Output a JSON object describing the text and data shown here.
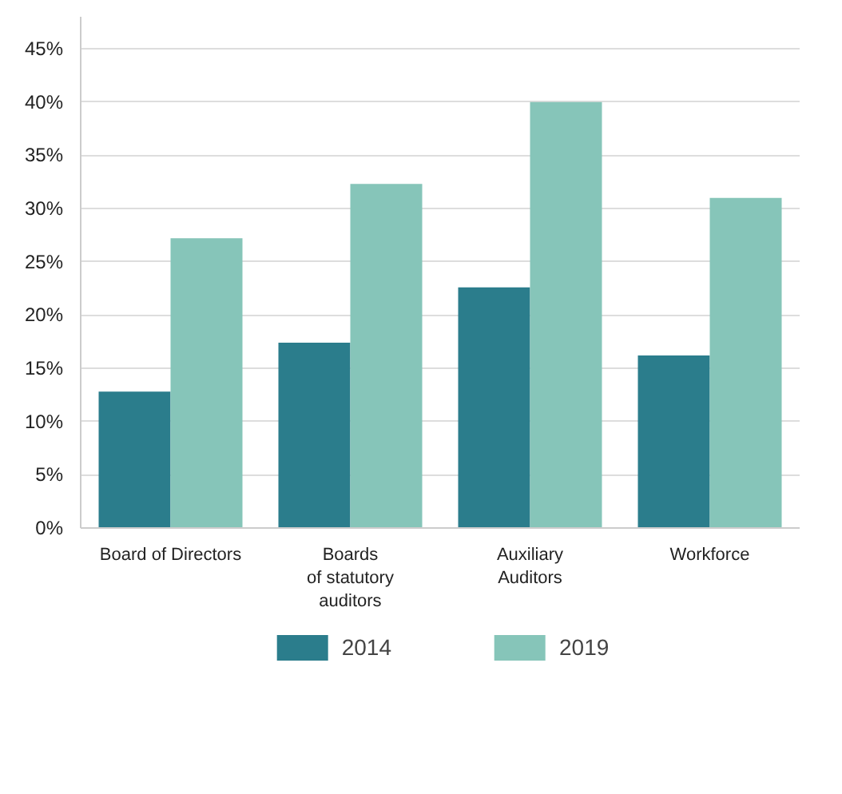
{
  "chart_data": {
    "type": "bar",
    "categories": [
      "Board of Directors",
      "Boards\nof statutory\nauditors",
      "Auxiliary\nAuditors",
      "Workforce"
    ],
    "series": [
      {
        "name": "2014",
        "color": "#2b7d8c",
        "values": [
          12.8,
          17.4,
          22.6,
          16.2
        ]
      },
      {
        "name": "2019",
        "color": "#86c5b9",
        "values": [
          27.2,
          32.3,
          40,
          31
        ]
      }
    ],
    "ylim": [
      0,
      48
    ],
    "yticks": [
      {
        "value": 0,
        "label": "0%"
      },
      {
        "value": 5,
        "label": "5%"
      },
      {
        "value": 10,
        "label": "10%"
      },
      {
        "value": 15,
        "label": "15%"
      },
      {
        "value": 20,
        "label": "20%"
      },
      {
        "value": 25,
        "label": "25%"
      },
      {
        "value": 30,
        "label": "30%"
      },
      {
        "value": 35,
        "label": "35%"
      },
      {
        "value": 40,
        "label": "40%"
      },
      {
        "value": 45,
        "label": "45%"
      }
    ],
    "grid": "y",
    "legend": "bottom"
  }
}
